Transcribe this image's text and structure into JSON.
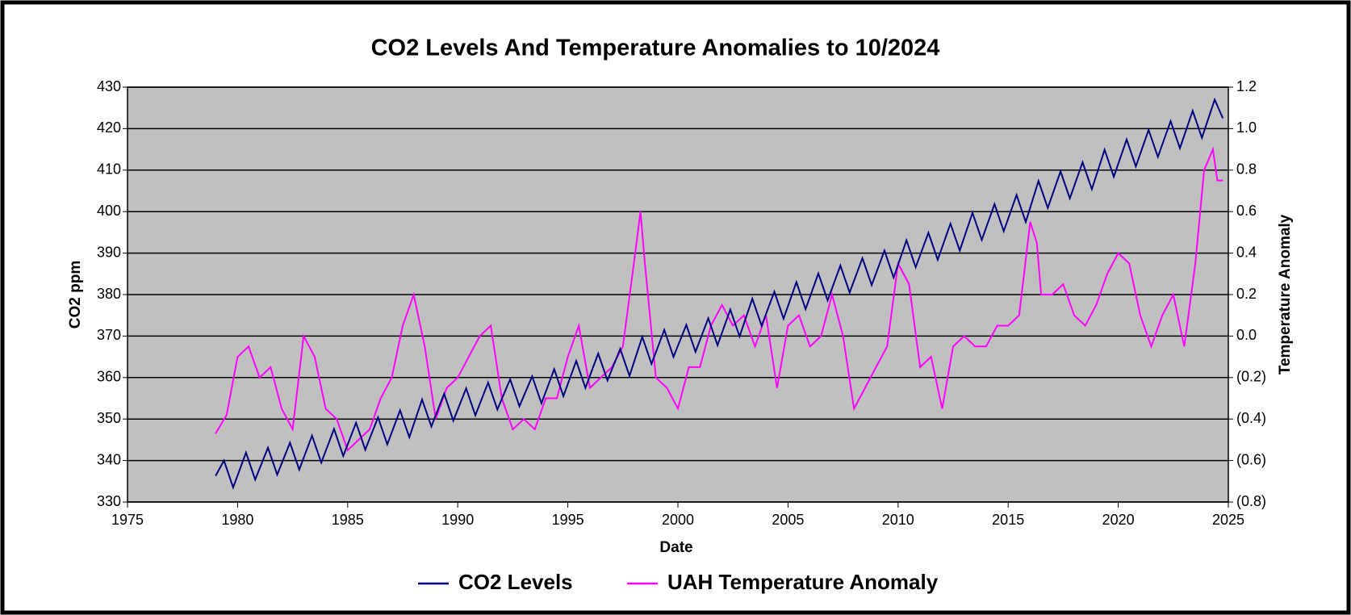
{
  "chart_data": {
    "type": "line",
    "title": "CO2 Levels And Temperature Anomalies to 10/2024",
    "x_label": "Date",
    "y_label": "CO2 ppm",
    "y2_label": "Temperature Anomaly",
    "xlim": [
      1975,
      2025
    ],
    "xticks": [
      1975,
      1980,
      1985,
      1990,
      1995,
      2000,
      2005,
      2010,
      2015,
      2020,
      2025
    ],
    "ylim": [
      330,
      430
    ],
    "yticks": [
      330,
      340,
      350,
      360,
      370,
      380,
      390,
      400,
      410,
      420,
      430
    ],
    "y2lim": [
      -0.8,
      1.2
    ],
    "y2ticks": [
      {
        "value": -0.8,
        "label": "(0.8)"
      },
      {
        "value": -0.6,
        "label": "(0.6)"
      },
      {
        "value": -0.4,
        "label": "(0.4)"
      },
      {
        "value": -0.2,
        "label": "(0.2)"
      },
      {
        "value": 0,
        "label": "0.0"
      },
      0.2,
      0.4,
      0.6,
      0.8,
      {
        "value": 1,
        "label": "1.0"
      },
      1.2
    ],
    "y2tick_negative_color": "#ff0000",
    "grid": true,
    "plot_background": "#c0c0c0",
    "legend_position": "bottom",
    "series": [
      {
        "name": "CO2 Levels",
        "color": "#000080",
        "x": [
          1979.0,
          1979.38,
          1979.8,
          1980.38,
          1980.8,
          1981.38,
          1981.8,
          1982.38,
          1982.8,
          1983.38,
          1983.8,
          1984.38,
          1984.8,
          1985.38,
          1985.8,
          1986.38,
          1986.8,
          1987.38,
          1987.8,
          1988.38,
          1988.8,
          1989.38,
          1989.8,
          1990.38,
          1990.8,
          1991.38,
          1991.8,
          1992.38,
          1992.8,
          1993.38,
          1993.8,
          1994.38,
          1994.8,
          1995.38,
          1995.8,
          1996.38,
          1996.8,
          1997.38,
          1997.8,
          1998.38,
          1998.8,
          1999.38,
          1999.8,
          2000.38,
          2000.8,
          2001.38,
          2001.8,
          2002.38,
          2002.8,
          2003.38,
          2003.8,
          2004.38,
          2004.8,
          2005.38,
          2005.8,
          2006.38,
          2006.8,
          2007.38,
          2007.8,
          2008.38,
          2008.8,
          2009.38,
          2009.8,
          2010.38,
          2010.8,
          2011.38,
          2011.8,
          2012.38,
          2012.8,
          2013.38,
          2013.8,
          2014.38,
          2014.8,
          2015.38,
          2015.8,
          2016.38,
          2016.8,
          2017.38,
          2017.8,
          2018.38,
          2018.8,
          2019.38,
          2019.8,
          2020.38,
          2020.8,
          2021.38,
          2021.8,
          2022.38,
          2022.8,
          2023.38,
          2023.8,
          2024.38,
          2024.75
        ],
        "values": [
          336.3,
          340.0,
          333.5,
          341.9,
          335.4,
          343.1,
          336.6,
          344.3,
          337.8,
          346.0,
          339.5,
          347.6,
          341.1,
          349.1,
          342.6,
          350.4,
          343.9,
          352.1,
          345.6,
          354.7,
          348.2,
          356.1,
          349.6,
          357.4,
          350.9,
          358.8,
          352.3,
          359.6,
          353.1,
          360.3,
          353.8,
          362.0,
          355.5,
          364.0,
          357.5,
          365.8,
          359.3,
          366.9,
          360.4,
          369.8,
          363.3,
          371.5,
          365.0,
          372.7,
          366.2,
          374.3,
          367.8,
          376.4,
          369.9,
          379.0,
          372.5,
          380.7,
          374.2,
          383.0,
          376.5,
          385.1,
          378.6,
          387.0,
          380.5,
          388.8,
          382.3,
          390.6,
          384.1,
          393.1,
          386.6,
          394.9,
          388.4,
          397.1,
          390.6,
          399.7,
          393.2,
          401.8,
          395.3,
          404.0,
          397.5,
          407.4,
          400.9,
          409.7,
          403.2,
          411.9,
          405.4,
          414.9,
          408.4,
          417.4,
          410.9,
          419.7,
          413.2,
          421.8,
          415.3,
          424.3,
          417.8,
          427.0,
          422.5
        ]
      },
      {
        "name": "UAH Temperature Anomaly",
        "color": "#ff00ff",
        "axis": "y2",
        "x": [
          1979.0,
          1979.5,
          1980.0,
          1980.5,
          1981.0,
          1981.5,
          1982.0,
          1982.5,
          1983.0,
          1983.5,
          1984.0,
          1984.5,
          1985.0,
          1985.5,
          1986.0,
          1986.5,
          1987.0,
          1987.5,
          1988.0,
          1988.5,
          1989.0,
          1989.5,
          1990.0,
          1990.5,
          1991.0,
          1991.5,
          1992.0,
          1992.5,
          1993.0,
          1993.5,
          1994.0,
          1994.5,
          1995.0,
          1995.5,
          1996.0,
          1996.5,
          1997.0,
          1997.5,
          1998.0,
          1998.3,
          1998.5,
          1999.0,
          1999.5,
          2000.0,
          2000.5,
          2001.0,
          2001.5,
          2002.0,
          2002.5,
          2003.0,
          2003.5,
          2004.0,
          2004.5,
          2005.0,
          2005.5,
          2006.0,
          2006.5,
          2007.0,
          2007.5,
          2008.0,
          2008.5,
          2009.0,
          2009.5,
          2010.0,
          2010.5,
          2011.0,
          2011.5,
          2012.0,
          2012.5,
          2013.0,
          2013.5,
          2014.0,
          2014.5,
          2015.0,
          2015.5,
          2016.0,
          2016.3,
          2016.5,
          2017.0,
          2017.5,
          2018.0,
          2018.5,
          2019.0,
          2019.5,
          2020.0,
          2020.5,
          2021.0,
          2021.5,
          2022.0,
          2022.5,
          2023.0,
          2023.5,
          2023.9,
          2024.3,
          2024.5,
          2024.75
        ],
        "values": [
          -0.47,
          -0.38,
          -0.1,
          -0.05,
          -0.2,
          -0.15,
          -0.35,
          -0.45,
          0.0,
          -0.1,
          -0.35,
          -0.4,
          -0.55,
          -0.5,
          -0.45,
          -0.3,
          -0.2,
          0.05,
          0.2,
          -0.05,
          -0.4,
          -0.25,
          -0.2,
          -0.1,
          0.0,
          0.05,
          -0.3,
          -0.45,
          -0.4,
          -0.45,
          -0.3,
          -0.3,
          -0.1,
          0.05,
          -0.25,
          -0.2,
          -0.15,
          -0.05,
          0.35,
          0.6,
          0.35,
          -0.2,
          -0.25,
          -0.35,
          -0.15,
          -0.15,
          0.05,
          0.15,
          0.05,
          0.1,
          -0.05,
          0.1,
          -0.25,
          0.05,
          0.1,
          -0.05,
          0.0,
          0.2,
          0.0,
          -0.35,
          -0.25,
          -0.15,
          -0.05,
          0.35,
          0.25,
          -0.15,
          -0.1,
          -0.35,
          -0.05,
          0.0,
          -0.05,
          -0.05,
          0.05,
          0.05,
          0.1,
          0.55,
          0.45,
          0.2,
          0.2,
          0.25,
          0.1,
          0.05,
          0.15,
          0.3,
          0.4,
          0.35,
          0.1,
          -0.05,
          0.1,
          0.2,
          -0.05,
          0.35,
          0.8,
          0.9,
          0.75,
          0.75
        ]
      }
    ]
  }
}
